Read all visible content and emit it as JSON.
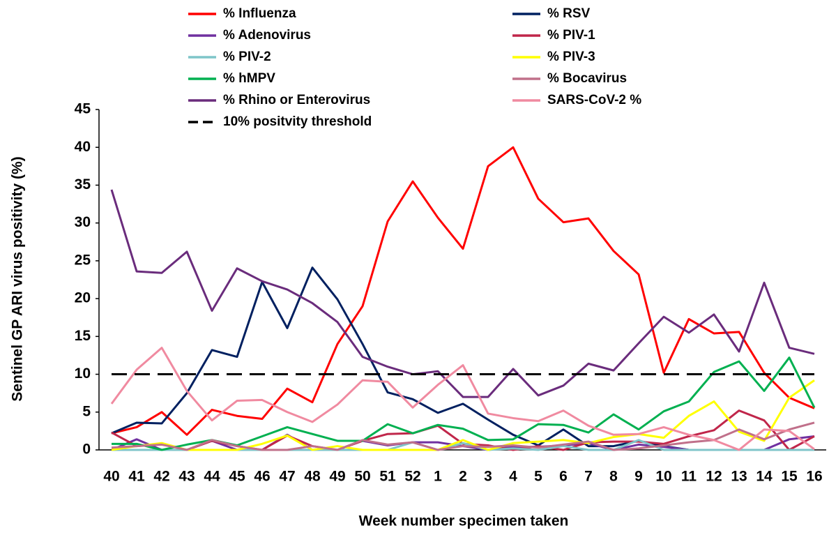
{
  "chart_data": {
    "type": "line",
    "x_label": "Week number specimen taken",
    "y_label": "Sentinel GP ARI virus positivity (%)",
    "categories": [
      "40",
      "41",
      "42",
      "43",
      "44",
      "45",
      "46",
      "47",
      "48",
      "49",
      "50",
      "51",
      "52",
      "1",
      "2",
      "3",
      "4",
      "5",
      "6",
      "7",
      "8",
      "9",
      "10",
      "11",
      "12",
      "13",
      "14",
      "15",
      "16"
    ],
    "ylim": [
      0,
      45
    ],
    "yticks": [
      0,
      5,
      10,
      15,
      20,
      25,
      30,
      35,
      40,
      45
    ],
    "grid": false,
    "series": [
      {
        "name": "% Influenza",
        "color": "#ff0000",
        "values": [
          2.2,
          3,
          5,
          2,
          5.3,
          4.5,
          4.1,
          8.1,
          6.3,
          14,
          19,
          30.2,
          35.5,
          30.7,
          26.6,
          37.5,
          40,
          33.2,
          30.1,
          30.6,
          26.3,
          23.2,
          10.2,
          17.3,
          15.4,
          15.6,
          10.2,
          6.9,
          5.5
        ]
      },
      {
        "name": "% RSV",
        "color": "#002060",
        "values": [
          2.2,
          3.6,
          3.5,
          7.5,
          13.2,
          12.3,
          22.2,
          16.1,
          24.1,
          19.9,
          14,
          7.6,
          6.7,
          4.9,
          6.1,
          4,
          2,
          0.6,
          2.7,
          0.5,
          0.5,
          1.2,
          0.5,
          0,
          0,
          0,
          0,
          0,
          0
        ]
      },
      {
        "name": "% Adenovirus",
        "color": "#7030a0",
        "values": [
          0,
          1.4,
          0,
          0,
          1.2,
          0,
          0,
          2,
          0,
          0,
          1.2,
          0.6,
          1,
          1,
          0.5,
          0,
          0.4,
          0.4,
          0.6,
          0.9,
          0,
          0.7,
          0.4,
          0,
          0,
          0,
          0,
          1.4,
          1.8
        ]
      },
      {
        "name": "% PIV-1",
        "color": "#c0264a",
        "values": [
          2.3,
          0.5,
          0.8,
          0,
          1.2,
          0.5,
          0,
          1.9,
          0.5,
          0,
          1.2,
          2.1,
          2.2,
          3.2,
          0.8,
          0.6,
          0,
          0.5,
          0,
          1,
          1.1,
          1.1,
          0.8,
          1.8,
          2.6,
          5.2,
          3.9,
          0,
          1.8
        ]
      },
      {
        "name": "% PIV-2",
        "color": "#7fc5c9",
        "values": [
          0,
          0,
          0,
          0,
          0,
          0,
          0,
          0,
          0,
          0,
          0,
          0,
          1,
          0,
          0.9,
          0,
          0.2,
          0,
          0.5,
          0,
          0,
          1.3,
          0,
          0,
          0,
          0,
          0,
          0,
          0
        ]
      },
      {
        "name": "% PIV-3",
        "color": "#ffff00",
        "values": [
          0,
          0.5,
          0.9,
          0,
          0,
          0,
          0.8,
          1.9,
          0,
          0.5,
          0,
          0,
          0,
          0,
          1.3,
          0,
          0.9,
          1.1,
          1.3,
          0.9,
          1.7,
          2.1,
          1.6,
          4.5,
          6.4,
          2.4,
          1.2,
          6.9,
          9.2
        ]
      },
      {
        "name": "% hMPV",
        "color": "#00b050",
        "values": [
          0.8,
          0.8,
          0,
          0.7,
          1.3,
          0.6,
          1.8,
          3,
          2.1,
          1.2,
          1.2,
          3.4,
          2.2,
          3.3,
          2.8,
          1.3,
          1.4,
          3.4,
          3.3,
          2.3,
          4.7,
          2.7,
          5.1,
          6.4,
          10.3,
          11.7,
          7.8,
          12.2,
          5.6
        ]
      },
      {
        "name": "% Bocavirus",
        "color": "#c0708a",
        "values": [
          0.3,
          0.5,
          0.7,
          0,
          1.3,
          0.5,
          0,
          0,
          0.5,
          0,
          1.3,
          0.7,
          1,
          0,
          0.5,
          0.4,
          0.6,
          0.3,
          0.7,
          1.1,
          0,
          0.2,
          0.6,
          1,
          1.3,
          2.7,
          1.4,
          2.7,
          3.6
        ]
      },
      {
        "name": "% Rhino or Enterovirus",
        "color": "#6a2c7c",
        "values": [
          34.4,
          23.6,
          23.4,
          26.2,
          18.4,
          24,
          22.3,
          21.2,
          19.4,
          16.9,
          12.3,
          11,
          10,
          10.4,
          7,
          7,
          10.7,
          7.2,
          8.5,
          11.4,
          10.5,
          14.1,
          17.6,
          15.5,
          17.9,
          13,
          22.1,
          13.5,
          12.7
        ]
      },
      {
        "name": "SARS-CoV-2 %",
        "color": "#f08aa0",
        "values": [
          6.1,
          10.6,
          13.5,
          7.8,
          3.9,
          6.5,
          6.6,
          5,
          3.7,
          6,
          9.2,
          9,
          5.6,
          8.6,
          11.2,
          4.8,
          4.2,
          3.8,
          5.2,
          3.2,
          2,
          2.1,
          3,
          2,
          1.3,
          0,
          2.7,
          2.5,
          0.1
        ]
      },
      {
        "name": "10% positvity threshold",
        "color": "#000000",
        "dashed": true,
        "values": [
          10,
          10,
          10,
          10,
          10,
          10,
          10,
          10,
          10,
          10,
          10,
          10,
          10,
          10,
          10,
          10,
          10,
          10,
          10,
          10,
          10,
          10,
          10,
          10,
          10,
          10,
          10,
          10,
          10
        ]
      }
    ]
  }
}
